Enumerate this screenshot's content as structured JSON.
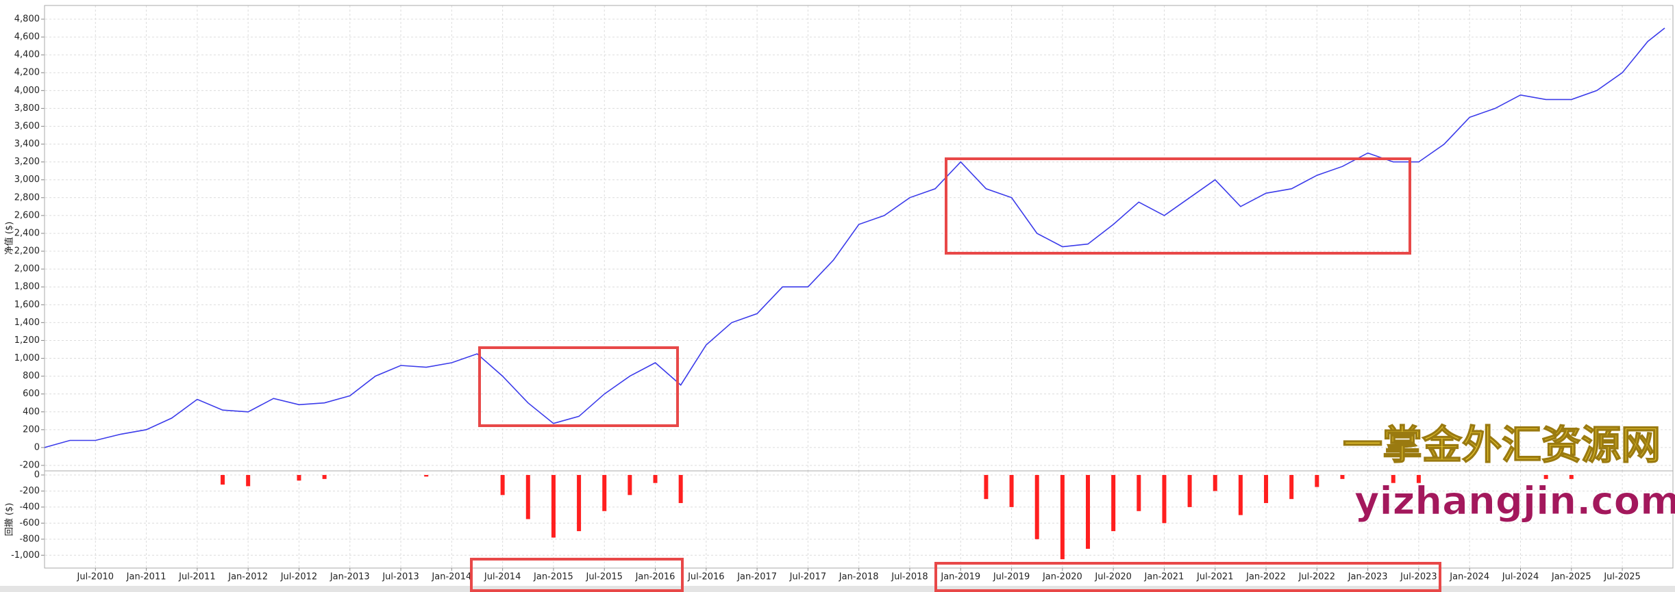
{
  "chart_data": [
    {
      "type": "line",
      "ylabel": "净值 ($)",
      "color": "#3b3bea",
      "grid": true,
      "x": [
        "2010-01",
        "2010-04",
        "2010-07",
        "2010-10",
        "2011-01",
        "2011-04",
        "2011-07",
        "2011-10",
        "2012-01",
        "2012-04",
        "2012-07",
        "2012-10",
        "2013-01",
        "2013-04",
        "2013-07",
        "2013-10",
        "2014-01",
        "2014-04",
        "2014-07",
        "2014-10",
        "2015-01",
        "2015-04",
        "2015-07",
        "2015-10",
        "2016-01",
        "2016-04",
        "2016-07",
        "2016-10",
        "2017-01",
        "2017-04",
        "2017-07",
        "2017-10",
        "2018-01",
        "2018-04",
        "2018-07",
        "2018-10",
        "2019-01",
        "2019-04",
        "2019-07",
        "2019-10",
        "2020-01",
        "2020-04",
        "2020-07",
        "2020-10",
        "2021-01",
        "2021-04",
        "2021-07",
        "2021-10",
        "2022-01",
        "2022-04",
        "2022-07",
        "2022-10",
        "2023-01",
        "2023-04",
        "2023-07",
        "2023-10",
        "2024-01",
        "2024-04",
        "2024-07",
        "2024-10",
        "2025-01",
        "2025-04",
        "2025-07",
        "2025-10",
        "2025-12"
      ],
      "values": [
        0,
        80,
        80,
        150,
        200,
        330,
        540,
        420,
        400,
        550,
        480,
        500,
        580,
        800,
        920,
        900,
        950,
        1050,
        800,
        500,
        270,
        350,
        600,
        800,
        950,
        700,
        1150,
        1400,
        1500,
        1800,
        1800,
        2100,
        2500,
        2600,
        2800,
        2900,
        3200,
        2900,
        2800,
        2400,
        2250,
        2280,
        2500,
        2750,
        2600,
        2800,
        3000,
        2700,
        2850,
        2900,
        3050,
        3150,
        3300,
        3200,
        3200,
        3400,
        3700,
        3800,
        3950,
        3900,
        3900,
        4000,
        4200,
        4550,
        4700
      ],
      "xlim": [
        "2010-01",
        "2025-12"
      ],
      "ylim": [
        -200,
        4800
      ],
      "yticks": [
        -200,
        0,
        200,
        400,
        600,
        800,
        {
          "value": 1000,
          "label": "1,000"
        },
        {
          "value": 1200,
          "label": "1,200"
        },
        {
          "value": 1400,
          "label": "1,400"
        },
        {
          "value": 1600,
          "label": "1,600"
        },
        {
          "value": 1800,
          "label": "1,800"
        },
        {
          "value": 2000,
          "label": "2,000"
        },
        {
          "value": 2200,
          "label": "2,200"
        },
        {
          "value": 2400,
          "label": "2,400"
        },
        {
          "value": 2600,
          "label": "2,600"
        },
        {
          "value": 2800,
          "label": "2,800"
        },
        {
          "value": 3000,
          "label": "3,000"
        },
        {
          "value": 3200,
          "label": "3,200"
        },
        {
          "value": 3400,
          "label": "3,400"
        },
        {
          "value": 3600,
          "label": "3,600"
        },
        {
          "value": 3800,
          "label": "3,800"
        },
        {
          "value": 4000,
          "label": "4,000"
        },
        {
          "value": 4200,
          "label": "4,200"
        },
        {
          "value": 4400,
          "label": "4,400"
        },
        {
          "value": 4600,
          "label": "4,600"
        },
        {
          "value": 4800,
          "label": "4,800"
        }
      ]
    },
    {
      "type": "bar",
      "ylabel": "回撤 ($)",
      "color": "#ff1f1f",
      "grid": true,
      "x": [
        "2010-01",
        "2010-04",
        "2010-07",
        "2010-10",
        "2011-01",
        "2011-04",
        "2011-07",
        "2011-10",
        "2012-01",
        "2012-04",
        "2012-07",
        "2012-10",
        "2013-01",
        "2013-04",
        "2013-07",
        "2013-10",
        "2014-01",
        "2014-04",
        "2014-07",
        "2014-10",
        "2015-01",
        "2015-04",
        "2015-07",
        "2015-10",
        "2016-01",
        "2016-04",
        "2016-07",
        "2016-10",
        "2017-01",
        "2017-04",
        "2017-07",
        "2017-10",
        "2018-01",
        "2018-04",
        "2018-07",
        "2018-10",
        "2019-01",
        "2019-04",
        "2019-07",
        "2019-10",
        "2020-01",
        "2020-04",
        "2020-07",
        "2020-10",
        "2021-01",
        "2021-04",
        "2021-07",
        "2021-10",
        "2022-01",
        "2022-04",
        "2022-07",
        "2022-10",
        "2023-01",
        "2023-04",
        "2023-07",
        "2023-10",
        "2024-01",
        "2024-04",
        "2024-07",
        "2024-10",
        "2025-01",
        "2025-04",
        "2025-07",
        "2025-10",
        "2025-12"
      ],
      "values": [
        0,
        0,
        0,
        0,
        0,
        0,
        0,
        -120,
        -140,
        0,
        -70,
        -50,
        0,
        0,
        0,
        -20,
        0,
        0,
        -250,
        -550,
        -780,
        -700,
        -450,
        -250,
        -100,
        -350,
        0,
        0,
        0,
        0,
        0,
        0,
        0,
        0,
        0,
        0,
        0,
        -300,
        -400,
        -800,
        -1050,
        -920,
        -700,
        -450,
        -600,
        -400,
        -200,
        -500,
        -350,
        -300,
        -150,
        -50,
        0,
        -100,
        -100,
        0,
        0,
        0,
        0,
        -50,
        -50,
        0,
        0,
        0,
        0
      ],
      "xlim": [
        "2010-01",
        "2025-12"
      ],
      "ylim": [
        -1100,
        0
      ],
      "yticks": [
        0,
        -200,
        -400,
        -600,
        -800,
        {
          "value": -1000,
          "label": "-1,000"
        }
      ],
      "xticks": [
        {
          "value": "2010-07",
          "label": "Jul-2010"
        },
        {
          "value": "2011-01",
          "label": "Jan-2011"
        },
        {
          "value": "2011-07",
          "label": "Jul-2011"
        },
        {
          "value": "2012-01",
          "label": "Jan-2012"
        },
        {
          "value": "2012-07",
          "label": "Jul-2012"
        },
        {
          "value": "2013-01",
          "label": "Jan-2013"
        },
        {
          "value": "2013-07",
          "label": "Jul-2013"
        },
        {
          "value": "2014-01",
          "label": "Jan-2014"
        },
        {
          "value": "2014-07",
          "label": "Jul-2014"
        },
        {
          "value": "2015-01",
          "label": "Jan-2015"
        },
        {
          "value": "2015-07",
          "label": "Jul-2015"
        },
        {
          "value": "2016-01",
          "label": "Jan-2016"
        },
        {
          "value": "2016-07",
          "label": "Jul-2016"
        },
        {
          "value": "2017-01",
          "label": "Jan-2017"
        },
        {
          "value": "2017-07",
          "label": "Jul-2017"
        },
        {
          "value": "2018-01",
          "label": "Jan-2018"
        },
        {
          "value": "2018-07",
          "label": "Jul-2018"
        },
        {
          "value": "2019-01",
          "label": "Jan-2019"
        },
        {
          "value": "2019-07",
          "label": "Jul-2019"
        },
        {
          "value": "2020-01",
          "label": "Jan-2020"
        },
        {
          "value": "2020-07",
          "label": "Jul-2020"
        },
        {
          "value": "2021-01",
          "label": "Jan-2021"
        },
        {
          "value": "2021-07",
          "label": "Jul-2021"
        },
        {
          "value": "2022-01",
          "label": "Jan-2022"
        },
        {
          "value": "2022-07",
          "label": "Jul-2022"
        },
        {
          "value": "2023-01",
          "label": "Jan-2023"
        },
        {
          "value": "2023-07",
          "label": "Jul-2023"
        },
        {
          "value": "2024-01",
          "label": "Jan-2024"
        },
        {
          "value": "2024-07",
          "label": "Jul-2024"
        },
        {
          "value": "2025-01",
          "label": "Jan-2025"
        },
        {
          "value": "2025-07",
          "label": "Jul-2025"
        }
      ]
    }
  ],
  "watermark": {
    "cn": "一掌金外汇资源网",
    "url": "yizhangjin.com"
  }
}
